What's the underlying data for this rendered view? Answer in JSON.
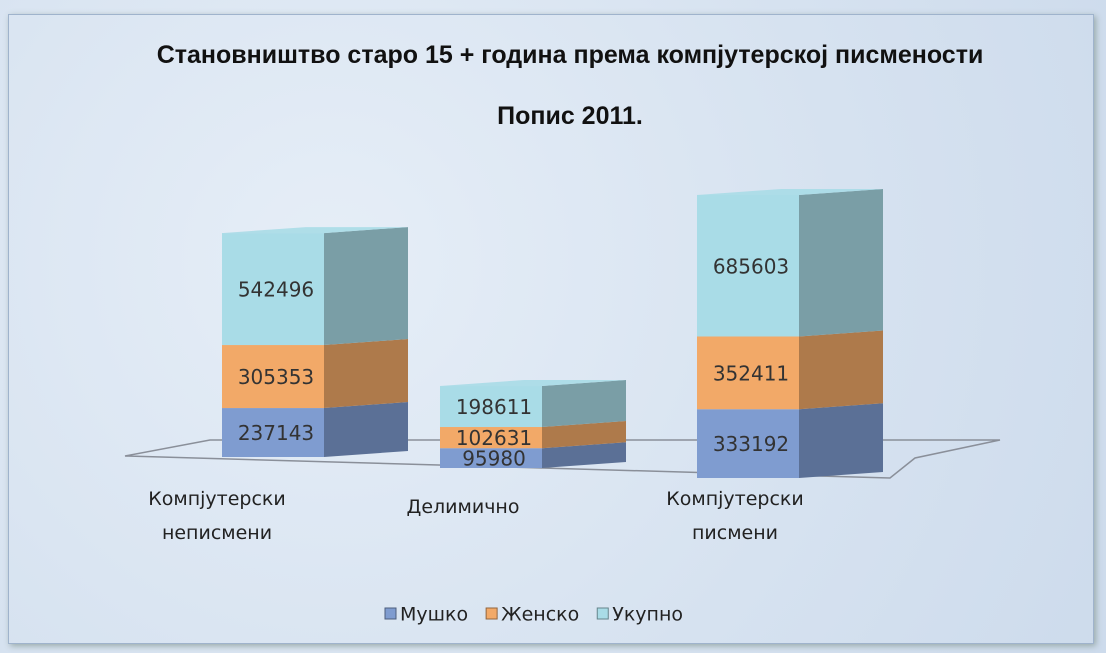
{
  "chart_data": {
    "type": "bar3d_stacked",
    "title": "Становништво старо 15 + година према компјутерској писмености",
    "subtitle": "Попис 2011.",
    "categories": [
      "Компјутерски неписмени",
      "Делимично",
      "Компјутерски писмени"
    ],
    "series": [
      {
        "name": "Мушко",
        "color": "#7f9cd0",
        "values": [
          237143,
          95980,
          333192
        ]
      },
      {
        "name": "Женско",
        "color": "#f2a968",
        "values": [
          305353,
          102631,
          352411
        ]
      },
      {
        "name": "Укупно",
        "color": "#a9dce7",
        "values": [
          542496,
          198611,
          685603
        ]
      }
    ],
    "legend": "bottom"
  }
}
